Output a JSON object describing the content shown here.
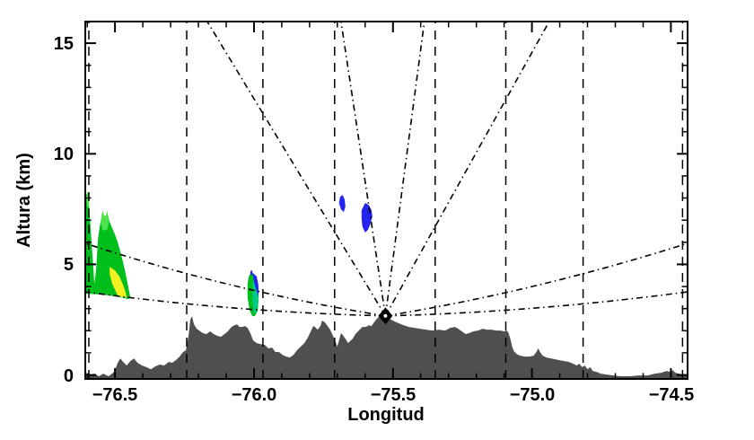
{
  "figure": {
    "background": "#ffffff",
    "axis_color": "#000000"
  },
  "chart_data": {
    "type": "area",
    "subtype": "radar-beam-terrain-cross-section",
    "title": "",
    "xlabel": "Longitud",
    "ylabel": "Altura (km)",
    "xlim": [
      -76.607,
      -74.44
    ],
    "ylim": [
      -0.18,
      15.98
    ],
    "grid": false,
    "legend": "none",
    "x_major_ticks": [
      {
        "value": -76.5,
        "label": "−76.5"
      },
      {
        "value": -76.0,
        "label": "−76.0"
      },
      {
        "value": -75.5,
        "label": "−75.5"
      },
      {
        "value": -75.0,
        "label": "−75.0"
      },
      {
        "value": -74.5,
        "label": "−74.5"
      }
    ],
    "x_minor_step": 0.1,
    "y_major_ticks": [
      {
        "value": 0,
        "label": "0"
      },
      {
        "value": 5,
        "label": "5"
      },
      {
        "value": 10,
        "label": "10"
      },
      {
        "value": 15,
        "label": "15"
      }
    ],
    "y_minor_step": 1,
    "colors": {
      "terrain": "#4f4f4f",
      "echo_green": "#00bf1c",
      "echo_green_bright": "#4fe24f",
      "echo_teal": "#00cc88",
      "echo_yellow": "#f4f123",
      "echo_blue": "#2424ee",
      "lines": "#000000"
    },
    "radar": {
      "lon": -75.527,
      "alt_km": 2.67,
      "marker": "filled-diamond",
      "marker_color": "#000000",
      "marker_center_dot": "#ffffff"
    },
    "range_mark_lons": [
      -76.594,
      -76.242,
      -75.968,
      -75.71,
      -75.348,
      -75.094,
      -74.816,
      -74.458
    ],
    "steep_beam_top_lons": [
      -76.168,
      -75.687,
      -75.387,
      -74.938
    ],
    "low_beams": [
      {
        "mid": [
          -76.073,
          4.04
        ],
        "end": [
          -76.607,
          5.95
        ]
      },
      {
        "mid": [
          -76.073,
          3.03
        ],
        "end": [
          -76.607,
          3.76
        ]
      },
      {
        "mid": [
          -74.985,
          4.04
        ],
        "end": [
          -74.44,
          5.95
        ]
      },
      {
        "mid": [
          -74.985,
          3.03
        ],
        "end": [
          -74.44,
          3.76
        ]
      }
    ],
    "terrain_profile": [
      [
        -76.606,
        -0.1
      ],
      [
        -76.574,
        0.06
      ],
      [
        -76.558,
        -0.06
      ],
      [
        -76.542,
        0.06
      ],
      [
        -76.523,
        -0.06
      ],
      [
        -76.503,
        0.14
      ],
      [
        -76.49,
        0.55
      ],
      [
        -76.481,
        0.75
      ],
      [
        -76.471,
        0.59
      ],
      [
        -76.458,
        0.43
      ],
      [
        -76.445,
        0.63
      ],
      [
        -76.432,
        0.75
      ],
      [
        -76.419,
        0.55
      ],
      [
        -76.403,
        0.43
      ],
      [
        -76.387,
        0.35
      ],
      [
        -76.371,
        0.26
      ],
      [
        -76.355,
        0.39
      ],
      [
        -76.339,
        0.47
      ],
      [
        -76.323,
        0.43
      ],
      [
        -76.306,
        0.59
      ],
      [
        -76.294,
        0.55
      ],
      [
        -76.281,
        0.67
      ],
      [
        -76.268,
        0.83
      ],
      [
        -76.255,
        1.04
      ],
      [
        -76.245,
        1.12
      ],
      [
        -76.235,
        1.81
      ],
      [
        -76.229,
        2.5
      ],
      [
        -76.223,
        2.66
      ],
      [
        -76.216,
        2.29
      ],
      [
        -76.206,
        2.09
      ],
      [
        -76.197,
        2.01
      ],
      [
        -76.184,
        1.89
      ],
      [
        -76.171,
        1.85
      ],
      [
        -76.158,
        1.97
      ],
      [
        -76.145,
        1.85
      ],
      [
        -76.132,
        1.77
      ],
      [
        -76.119,
        1.73
      ],
      [
        -76.106,
        1.85
      ],
      [
        -76.094,
        1.97
      ],
      [
        -76.081,
        2.17
      ],
      [
        -76.071,
        2.25
      ],
      [
        -76.061,
        2.29
      ],
      [
        -76.052,
        2.17
      ],
      [
        -76.042,
        2.17
      ],
      [
        -76.032,
        2.21
      ],
      [
        -76.023,
        2.13
      ],
      [
        -76.013,
        1.89
      ],
      [
        -76.003,
        1.56
      ],
      [
        -75.99,
        1.44
      ],
      [
        -75.977,
        1.4
      ],
      [
        -75.961,
        1.36
      ],
      [
        -75.948,
        1.2
      ],
      [
        -75.935,
        1.24
      ],
      [
        -75.923,
        1.04
      ],
      [
        -75.91,
        1.04
      ],
      [
        -75.897,
        0.91
      ],
      [
        -75.884,
        0.83
      ],
      [
        -75.871,
        0.79
      ],
      [
        -75.858,
        0.91
      ],
      [
        -75.845,
        1.12
      ],
      [
        -75.832,
        1.28
      ],
      [
        -75.819,
        1.44
      ],
      [
        -75.806,
        1.69
      ],
      [
        -75.797,
        1.93
      ],
      [
        -75.787,
        2.21
      ],
      [
        -75.781,
        2.17
      ],
      [
        -75.771,
        2.05
      ],
      [
        -75.761,
        2.21
      ],
      [
        -75.755,
        2.46
      ],
      [
        -75.745,
        2.38
      ],
      [
        -75.735,
        2.21
      ],
      [
        -75.726,
        2.05
      ],
      [
        -75.716,
        1.77
      ],
      [
        -75.706,
        1.48
      ],
      [
        -75.7,
        1.28
      ],
      [
        -75.694,
        1.56
      ],
      [
        -75.687,
        1.89
      ],
      [
        -75.681,
        1.81
      ],
      [
        -75.671,
        1.64
      ],
      [
        -75.661,
        1.44
      ],
      [
        -75.655,
        1.52
      ],
      [
        -75.645,
        1.64
      ],
      [
        -75.635,
        1.85
      ],
      [
        -75.623,
        2.01
      ],
      [
        -75.61,
        2.17
      ],
      [
        -75.597,
        2.17
      ],
      [
        -75.587,
        2.25
      ],
      [
        -75.577,
        2.21
      ],
      [
        -75.568,
        2.38
      ],
      [
        -75.558,
        2.54
      ],
      [
        -75.548,
        2.66
      ],
      [
        -75.539,
        2.74
      ],
      [
        -75.529,
        2.7
      ],
      [
        -75.519,
        2.58
      ],
      [
        -75.506,
        2.5
      ],
      [
        -75.494,
        2.42
      ],
      [
        -75.477,
        2.33
      ],
      [
        -75.461,
        2.25
      ],
      [
        -75.442,
        2.17
      ],
      [
        -75.423,
        2.13
      ],
      [
        -75.403,
        2.09
      ],
      [
        -75.381,
        2.05
      ],
      [
        -75.358,
        2.01
      ],
      [
        -75.335,
        2.05
      ],
      [
        -75.313,
        2.01
      ],
      [
        -75.294,
        2.13
      ],
      [
        -75.277,
        2.17
      ],
      [
        -75.265,
        2.09
      ],
      [
        -75.252,
        1.97
      ],
      [
        -75.239,
        1.85
      ],
      [
        -75.226,
        1.89
      ],
      [
        -75.21,
        1.97
      ],
      [
        -75.194,
        2.01
      ],
      [
        -75.177,
        2.09
      ],
      [
        -75.161,
        2.05
      ],
      [
        -75.145,
        2.05
      ],
      [
        -75.129,
        2.01
      ],
      [
        -75.113,
        2.01
      ],
      [
        -75.1,
        1.97
      ],
      [
        -75.09,
        2.01
      ],
      [
        -75.084,
        1.89
      ],
      [
        -75.077,
        1.6
      ],
      [
        -75.071,
        1.28
      ],
      [
        -75.065,
        1.08
      ],
      [
        -75.055,
        0.95
      ],
      [
        -75.042,
        0.87
      ],
      [
        -75.026,
        0.83
      ],
      [
        -75.01,
        0.83
      ],
      [
        -74.994,
        0.87
      ],
      [
        -74.984,
        1.04
      ],
      [
        -74.977,
        1.2
      ],
      [
        -74.971,
        1.04
      ],
      [
        -74.961,
        0.87
      ],
      [
        -74.948,
        0.79
      ],
      [
        -74.932,
        0.75
      ],
      [
        -74.916,
        0.71
      ],
      [
        -74.9,
        0.67
      ],
      [
        -74.884,
        0.63
      ],
      [
        -74.868,
        0.59
      ],
      [
        -74.852,
        0.51
      ],
      [
        -74.839,
        0.43
      ],
      [
        -74.829,
        0.51
      ],
      [
        -74.819,
        0.35
      ],
      [
        -74.81,
        0.43
      ],
      [
        -74.8,
        0.26
      ],
      [
        -74.79,
        0.35
      ],
      [
        -74.781,
        0.18
      ],
      [
        -74.768,
        0.14
      ],
      [
        -74.752,
        0.06
      ],
      [
        -74.732,
        0.02
      ],
      [
        -74.706,
        -0.02
      ],
      [
        -74.681,
        -0.06
      ],
      [
        -74.648,
        -0.06
      ],
      [
        -74.616,
        -0.02
      ],
      [
        -74.584,
        -0.02
      ],
      [
        -74.558,
        0.06
      ],
      [
        -74.535,
        0.1
      ],
      [
        -74.516,
        0.18
      ],
      [
        -74.503,
        0.14
      ],
      [
        -74.494,
        0.22
      ],
      [
        -74.484,
        0.1
      ],
      [
        -74.471,
        0.06
      ],
      [
        -74.458,
        0.02
      ],
      [
        -74.44,
        -0.02
      ]
    ],
    "echoes": [
      {
        "name": "west-cell-green",
        "color_key": "echo_green",
        "points": [
          [
            -76.606,
            8.1
          ],
          [
            -76.597,
            8.26
          ],
          [
            -76.59,
            7.0
          ],
          [
            -76.581,
            5.38
          ],
          [
            -76.574,
            4.12
          ],
          [
            -76.568,
            4.77
          ],
          [
            -76.561,
            6.19
          ],
          [
            -76.552,
            6.92
          ],
          [
            -76.545,
            7.33
          ],
          [
            -76.535,
            7.13
          ],
          [
            -76.529,
            7.37
          ],
          [
            -76.519,
            6.92
          ],
          [
            -76.51,
            6.64
          ],
          [
            -76.5,
            6.35
          ],
          [
            -76.49,
            5.99
          ],
          [
            -76.481,
            5.58
          ],
          [
            -76.471,
            5.1
          ],
          [
            -76.461,
            4.53
          ],
          [
            -76.452,
            3.96
          ],
          [
            -76.445,
            3.51
          ],
          [
            -76.452,
            3.43
          ],
          [
            -76.494,
            3.55
          ],
          [
            -76.542,
            3.63
          ],
          [
            -76.59,
            3.67
          ],
          [
            -76.606,
            3.67
          ]
        ]
      },
      {
        "name": "west-cell-bright-tip-1",
        "color_key": "echo_green_bright",
        "points": [
          [
            -76.603,
            8.05
          ],
          [
            -76.597,
            8.3
          ],
          [
            -76.592,
            7.6
          ],
          [
            -76.6,
            7.6
          ]
        ]
      },
      {
        "name": "west-cell-bright-tip-2",
        "color_key": "echo_green_bright",
        "points": [
          [
            -76.552,
            6.92
          ],
          [
            -76.545,
            7.45
          ],
          [
            -76.539,
            7.2
          ],
          [
            -76.532,
            7.2
          ],
          [
            -76.529,
            7.45
          ],
          [
            -76.521,
            6.95
          ],
          [
            -76.529,
            6.55
          ],
          [
            -76.545,
            6.55
          ]
        ]
      },
      {
        "name": "west-cell-yellow-core",
        "color_key": "echo_yellow",
        "points": [
          [
            -76.519,
            4.89
          ],
          [
            -76.5,
            4.73
          ],
          [
            -76.484,
            4.45
          ],
          [
            -76.471,
            4.08
          ],
          [
            -76.461,
            3.71
          ],
          [
            -76.458,
            3.51
          ],
          [
            -76.474,
            3.51
          ],
          [
            -76.49,
            3.59
          ],
          [
            -76.51,
            4.12
          ],
          [
            -76.519,
            4.57
          ]
        ]
      },
      {
        "name": "mid-cell-green",
        "color_key": "echo_green",
        "points": [
          [
            -76.019,
            4.45
          ],
          [
            -76.01,
            4.65
          ],
          [
            -76.0,
            4.57
          ],
          [
            -75.994,
            4.45
          ],
          [
            -75.987,
            4.24
          ],
          [
            -75.984,
            3.88
          ],
          [
            -75.984,
            3.31
          ],
          [
            -75.987,
            2.9
          ],
          [
            -75.997,
            2.66
          ],
          [
            -76.006,
            2.66
          ],
          [
            -76.016,
            2.94
          ],
          [
            -76.023,
            3.51
          ],
          [
            -76.023,
            4.12
          ]
        ]
      },
      {
        "name": "mid-cell-teal",
        "color_key": "echo_teal",
        "points": [
          [
            -76.003,
            4.3
          ],
          [
            -75.992,
            4.3
          ],
          [
            -75.986,
            3.8
          ],
          [
            -75.986,
            3.2
          ],
          [
            -75.992,
            2.85
          ],
          [
            -76.0,
            2.75
          ],
          [
            -76.005,
            3.3
          ],
          [
            -76.005,
            3.9
          ]
        ]
      },
      {
        "name": "mid-cell-blue-edge",
        "color_key": "echo_blue",
        "points": [
          [
            -76.004,
            4.61
          ],
          [
            -75.99,
            4.45
          ],
          [
            -75.984,
            4.04
          ],
          [
            -75.984,
            3.55
          ],
          [
            -75.994,
            3.92
          ],
          [
            -76.001,
            4.3
          ]
        ]
      },
      {
        "name": "mid-cell-blue-dot",
        "color_key": "echo_blue",
        "points": [
          [
            -76.013,
            4.7
          ],
          [
            -76.006,
            4.72
          ],
          [
            -76.005,
            4.5
          ],
          [
            -76.012,
            4.5
          ]
        ]
      },
      {
        "name": "upper-blue-cell-west",
        "color_key": "echo_blue",
        "points": [
          [
            -75.69,
            8.06
          ],
          [
            -75.681,
            8.14
          ],
          [
            -75.674,
            7.94
          ],
          [
            -75.671,
            7.61
          ],
          [
            -75.677,
            7.37
          ],
          [
            -75.687,
            7.49
          ],
          [
            -75.694,
            7.78
          ]
        ]
      },
      {
        "name": "upper-blue-cell-east",
        "color_key": "echo_blue",
        "points": [
          [
            -75.6,
            7.78
          ],
          [
            -75.587,
            7.69
          ],
          [
            -75.577,
            7.45
          ],
          [
            -75.574,
            7.17
          ],
          [
            -75.581,
            6.84
          ],
          [
            -75.59,
            6.56
          ],
          [
            -75.6,
            6.44
          ],
          [
            -75.61,
            6.72
          ],
          [
            -75.613,
            7.08
          ],
          [
            -75.613,
            7.45
          ]
        ]
      }
    ]
  }
}
